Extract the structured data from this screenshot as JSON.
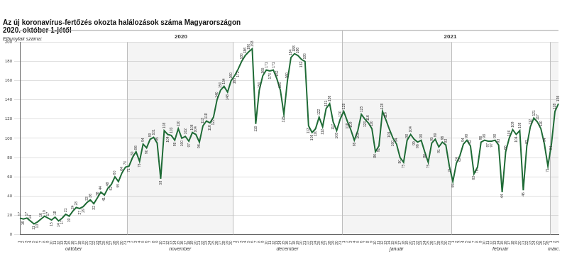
{
  "chart_data": {
    "type": "line",
    "title": "Az új koronavírus-fertőzés okozta halálozások száma Magyarországon",
    "subtitle": "2020. október 1-jétől",
    "ylabel": "Elhunytak száma:",
    "months": [
      {
        "name": "október",
        "year": "2020"
      },
      {
        "name": "november",
        "year": "2020"
      },
      {
        "name": "december",
        "year": "2020"
      },
      {
        "name": "január",
        "year": "2021"
      },
      {
        "name": "február",
        "year": "2021"
      },
      {
        "name": "márc.",
        "year": "2021"
      }
    ],
    "categories": [
      "1",
      "2",
      "3",
      "4",
      "5",
      "6",
      "7",
      "8",
      "9",
      "10",
      "11",
      "12",
      "13",
      "14",
      "15",
      "16",
      "17",
      "18",
      "19",
      "20",
      "21",
      "22",
      "23",
      "24",
      "25",
      "26",
      "27",
      "28",
      "29",
      "30",
      "31",
      "1",
      "2",
      "3",
      "4",
      "5",
      "6",
      "7",
      "8",
      "9",
      "10",
      "11",
      "12",
      "13",
      "14",
      "15",
      "16",
      "17",
      "18",
      "19",
      "20",
      "21",
      "22",
      "23",
      "24",
      "25",
      "26",
      "27",
      "28",
      "29",
      "30",
      "1",
      "2",
      "3",
      "4",
      "5",
      "6",
      "7",
      "8",
      "9",
      "10",
      "11",
      "12",
      "13",
      "14",
      "15",
      "16",
      "17",
      "18",
      "19",
      "20",
      "21",
      "22",
      "23",
      "24",
      "25",
      "26",
      "27",
      "28",
      "29",
      "30",
      "31",
      "1",
      "2",
      "3",
      "4",
      "5",
      "6",
      "7",
      "8",
      "9",
      "10",
      "11",
      "12",
      "13",
      "14",
      "15",
      "16",
      "17",
      "18",
      "19",
      "20",
      "21",
      "22",
      "23",
      "24",
      "25",
      "26",
      "27",
      "28",
      "29",
      "30",
      "31",
      "1",
      "2",
      "3",
      "4",
      "5",
      "6",
      "7",
      "8",
      "9",
      "10",
      "11",
      "12",
      "13",
      "14",
      "15",
      "16",
      "17",
      "18",
      "19",
      "20",
      "21",
      "22",
      "23",
      "24",
      "25",
      "26",
      "27",
      "28",
      "1",
      "2",
      "3"
    ],
    "values": [
      17,
      16,
      17,
      14,
      11,
      13,
      16,
      19,
      17,
      15,
      18,
      14,
      17,
      21,
      19,
      24,
      28,
      27,
      29,
      33,
      36,
      32,
      38,
      44,
      41,
      48,
      52,
      60,
      55,
      64,
      70,
      71,
      80,
      86,
      76,
      94,
      90,
      99,
      101,
      95,
      58,
      108,
      104,
      103,
      98,
      110,
      100,
      102,
      97,
      106,
      104,
      96,
      113,
      118,
      116,
      122,
      140,
      150,
      154,
      148,
      160,
      165,
      172,
      180,
      186,
      190,
      193,
      115,
      150,
      165,
      171,
      170,
      171,
      162,
      150,
      125,
      160,
      184,
      188,
      186,
      182,
      180,
      113,
      106,
      110,
      122,
      112,
      131,
      136,
      117,
      108,
      120,
      128,
      118,
      109,
      98,
      108,
      125,
      120,
      116,
      110,
      86,
      92,
      128,
      119,
      109,
      100,
      94,
      80,
      75,
      98,
      104,
      99,
      96,
      98,
      86,
      75,
      95,
      99,
      91,
      96,
      93,
      71,
      55,
      74,
      82,
      94,
      98,
      92,
      63,
      70,
      96,
      98,
      97,
      97,
      98,
      93,
      44,
      86,
      100,
      109,
      104,
      108,
      46,
      92,
      112,
      121,
      117,
      110,
      94,
      71,
      94,
      128,
      136
    ],
    "color": "#1f6b36",
    "ylim": [
      0,
      200
    ],
    "yticks": [
      0,
      20,
      40,
      60,
      80,
      100,
      120,
      140,
      160,
      180,
      200
    ],
    "grid": true,
    "data_labels": true
  }
}
